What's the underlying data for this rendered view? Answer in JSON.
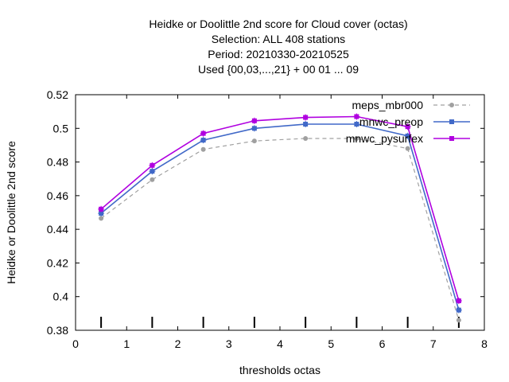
{
  "chart_data": {
    "type": "line",
    "title_lines": [
      "Heidke or Doolittle 2nd score  for Cloud cover (octas)",
      "Selection: ALL    408 stations",
      "Period: 20210330-20210525",
      "Used {00,03,...,21} + 00 01 ... 09"
    ],
    "xlabel": "thresholds octas",
    "ylabel": "Heidke or Doolittle 2nd score",
    "xlim": [
      0,
      8
    ],
    "ylim": [
      0.38,
      0.52
    ],
    "xticks": [
      "0",
      "1",
      "2",
      "3",
      "4",
      "5",
      "6",
      "7",
      "8"
    ],
    "yticks": [
      "0.38",
      "0.4",
      "0.42",
      "0.44",
      "0.46",
      "0.48",
      "0.5",
      "0.52"
    ],
    "legend_position": "top-right",
    "grid": false,
    "threshold_markers": [
      0.5,
      1.5,
      2.5,
      3.5,
      4.5,
      5.5,
      6.5,
      7.5
    ],
    "x": [
      0.5,
      1.5,
      2.5,
      3.5,
      4.5,
      5.5,
      6.5,
      7.5
    ],
    "series": [
      {
        "name": "meps_mbr000",
        "color": "#a0a0a0",
        "dashed": true,
        "values": [
          0.4465,
          0.4695,
          0.4875,
          0.4925,
          0.494,
          0.494,
          0.488,
          0.386
        ]
      },
      {
        "name": "mnwc_preop",
        "color": "#4169c8",
        "dashed": false,
        "values": [
          0.4495,
          0.4745,
          0.493,
          0.5,
          0.5025,
          0.5025,
          0.4955,
          0.392
        ]
      },
      {
        "name": "mnwc_pysurfex",
        "color": "#b000e0",
        "dashed": false,
        "values": [
          0.452,
          0.478,
          0.497,
          0.5045,
          0.5065,
          0.507,
          0.501,
          0.3975
        ]
      }
    ]
  }
}
